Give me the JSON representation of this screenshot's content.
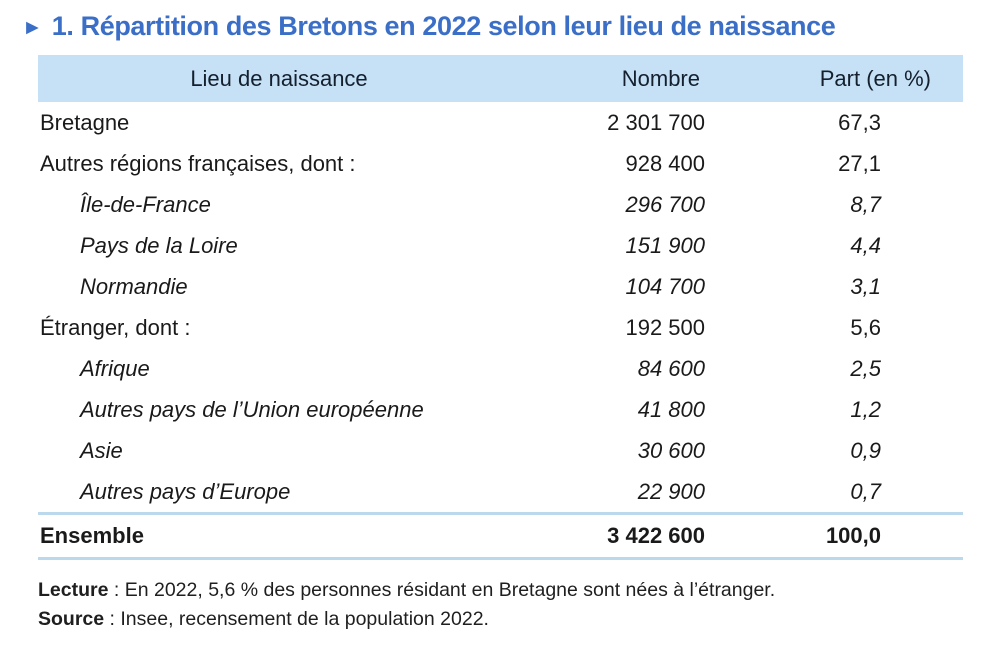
{
  "title": {
    "marker": "►",
    "text": "1. Répartition des Bretons en 2022 selon leur lieu de naissance"
  },
  "colors": {
    "title_blue": "#3b6fc7",
    "header_background": "#c6e0f6",
    "total_separator": "#bcd8ec",
    "body_text": "#1a1a1a"
  },
  "table": {
    "columns": {
      "lieu": "Lieu de naissance",
      "nombre": "Nombre",
      "part": "Part (en %)"
    },
    "rows": [
      {
        "label": "Bretagne",
        "nombre": "2 301 700",
        "part": "67,3",
        "level": "main"
      },
      {
        "label": "Autres régions françaises, dont :",
        "nombre": "928 400",
        "part": "27,1",
        "level": "main"
      },
      {
        "label": "Île-de-France",
        "nombre": "296 700",
        "part": "8,7",
        "level": "sub"
      },
      {
        "label": "Pays de la Loire",
        "nombre": "151 900",
        "part": "4,4",
        "level": "sub"
      },
      {
        "label": "Normandie",
        "nombre": "104 700",
        "part": "3,1",
        "level": "sub"
      },
      {
        "label": "Étranger, dont :",
        "nombre": "192 500",
        "part": "5,6",
        "level": "main"
      },
      {
        "label": "Afrique",
        "nombre": "84 600",
        "part": "2,5",
        "level": "sub"
      },
      {
        "label": "Autres pays de l’Union européenne",
        "nombre": "41 800",
        "part": "1,2",
        "level": "sub"
      },
      {
        "label": "Asie",
        "nombre": "30 600",
        "part": "0,9",
        "level": "sub"
      },
      {
        "label": "Autres pays d’Europe",
        "nombre": "22 900",
        "part": "0,7",
        "level": "sub"
      }
    ],
    "total": {
      "label": "Ensemble",
      "nombre": "3 422 600",
      "part": "100,0"
    }
  },
  "notes": {
    "lecture": {
      "label": "Lecture",
      "text": " : En 2022, 5,6 % des personnes résidant en Bretagne sont nées à l’étranger."
    },
    "source": {
      "label": "Source",
      "text": " : Insee, recensement de la population 2022."
    }
  }
}
